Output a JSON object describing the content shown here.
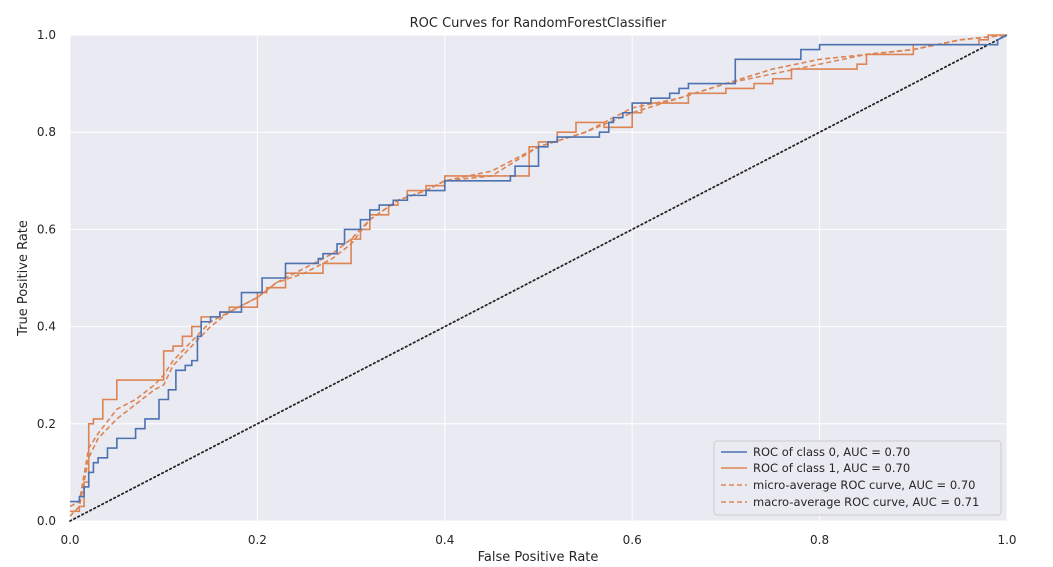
{
  "chart_data": {
    "type": "line",
    "title": "ROC Curves for RandomForestClassifier",
    "xlabel": "False Positive Rate",
    "ylabel": "True Positive Rate",
    "xlim": [
      0,
      1
    ],
    "ylim": [
      0,
      1
    ],
    "x_ticks": [
      "0.0",
      "0.2",
      "0.4",
      "0.6",
      "0.8",
      "1.0"
    ],
    "y_ticks": [
      "0.0",
      "0.2",
      "0.4",
      "0.6",
      "0.8",
      "1.0"
    ],
    "grid": true,
    "legend_position": "bottom-right",
    "colors": {
      "class0": "#4c72b0",
      "class1": "#dd8452",
      "diagonal": "#262626",
      "background": "#eaeaf2"
    },
    "series": [
      {
        "name": "ROC of class 0, AUC = 0.70",
        "style": "solid",
        "points": [
          [
            0,
            0.04
          ],
          [
            0.01,
            0.04
          ],
          [
            0.01,
            0.05
          ],
          [
            0.015,
            0.05
          ],
          [
            0.015,
            0.07
          ],
          [
            0.02,
            0.07
          ],
          [
            0.02,
            0.1
          ],
          [
            0.025,
            0.1
          ],
          [
            0.025,
            0.12
          ],
          [
            0.03,
            0.12
          ],
          [
            0.03,
            0.13
          ],
          [
            0.04,
            0.13
          ],
          [
            0.04,
            0.15
          ],
          [
            0.05,
            0.15
          ],
          [
            0.05,
            0.17
          ],
          [
            0.07,
            0.17
          ],
          [
            0.07,
            0.19
          ],
          [
            0.08,
            0.19
          ],
          [
            0.08,
            0.21
          ],
          [
            0.095,
            0.21
          ],
          [
            0.095,
            0.25
          ],
          [
            0.105,
            0.25
          ],
          [
            0.105,
            0.27
          ],
          [
            0.113,
            0.27
          ],
          [
            0.113,
            0.31
          ],
          [
            0.123,
            0.31
          ],
          [
            0.123,
            0.32
          ],
          [
            0.13,
            0.32
          ],
          [
            0.13,
            0.33
          ],
          [
            0.136,
            0.33
          ],
          [
            0.136,
            0.38
          ],
          [
            0.14,
            0.38
          ],
          [
            0.14,
            0.41
          ],
          [
            0.15,
            0.41
          ],
          [
            0.15,
            0.42
          ],
          [
            0.16,
            0.42
          ],
          [
            0.16,
            0.43
          ],
          [
            0.183,
            0.43
          ],
          [
            0.183,
            0.47
          ],
          [
            0.205,
            0.47
          ],
          [
            0.205,
            0.5
          ],
          [
            0.23,
            0.5
          ],
          [
            0.23,
            0.53
          ],
          [
            0.265,
            0.53
          ],
          [
            0.265,
            0.54
          ],
          [
            0.27,
            0.54
          ],
          [
            0.27,
            0.55
          ],
          [
            0.285,
            0.55
          ],
          [
            0.285,
            0.57
          ],
          [
            0.293,
            0.57
          ],
          [
            0.293,
            0.6
          ],
          [
            0.31,
            0.6
          ],
          [
            0.31,
            0.62
          ],
          [
            0.32,
            0.62
          ],
          [
            0.32,
            0.64
          ],
          [
            0.33,
            0.64
          ],
          [
            0.33,
            0.65
          ],
          [
            0.345,
            0.65
          ],
          [
            0.345,
            0.66
          ],
          [
            0.36,
            0.66
          ],
          [
            0.36,
            0.67
          ],
          [
            0.38,
            0.67
          ],
          [
            0.38,
            0.68
          ],
          [
            0.4,
            0.68
          ],
          [
            0.4,
            0.7
          ],
          [
            0.47,
            0.7
          ],
          [
            0.47,
            0.71
          ],
          [
            0.475,
            0.71
          ],
          [
            0.475,
            0.73
          ],
          [
            0.5,
            0.73
          ],
          [
            0.5,
            0.77
          ],
          [
            0.51,
            0.77
          ],
          [
            0.51,
            0.78
          ],
          [
            0.52,
            0.78
          ],
          [
            0.52,
            0.79
          ],
          [
            0.565,
            0.79
          ],
          [
            0.565,
            0.8
          ],
          [
            0.575,
            0.8
          ],
          [
            0.575,
            0.82
          ],
          [
            0.58,
            0.82
          ],
          [
            0.58,
            0.83
          ],
          [
            0.59,
            0.83
          ],
          [
            0.59,
            0.84
          ],
          [
            0.6,
            0.84
          ],
          [
            0.6,
            0.86
          ],
          [
            0.62,
            0.86
          ],
          [
            0.62,
            0.87
          ],
          [
            0.64,
            0.87
          ],
          [
            0.64,
            0.88
          ],
          [
            0.65,
            0.88
          ],
          [
            0.65,
            0.89
          ],
          [
            0.66,
            0.89
          ],
          [
            0.66,
            0.9
          ],
          [
            0.71,
            0.9
          ],
          [
            0.71,
            0.95
          ],
          [
            0.78,
            0.95
          ],
          [
            0.78,
            0.97
          ],
          [
            0.8,
            0.97
          ],
          [
            0.8,
            0.98
          ],
          [
            0.99,
            0.98
          ],
          [
            0.99,
            0.99
          ],
          [
            1,
            1
          ]
        ]
      },
      {
        "name": "ROC of class 1, AUC = 0.70",
        "style": "solid",
        "points": [
          [
            0,
            0.02
          ],
          [
            0.01,
            0.02
          ],
          [
            0.01,
            0.03
          ],
          [
            0.015,
            0.03
          ],
          [
            0.015,
            0.08
          ],
          [
            0.02,
            0.08
          ],
          [
            0.02,
            0.2
          ],
          [
            0.025,
            0.2
          ],
          [
            0.025,
            0.21
          ],
          [
            0.035,
            0.21
          ],
          [
            0.035,
            0.25
          ],
          [
            0.05,
            0.25
          ],
          [
            0.05,
            0.29
          ],
          [
            0.1,
            0.29
          ],
          [
            0.1,
            0.35
          ],
          [
            0.11,
            0.35
          ],
          [
            0.11,
            0.36
          ],
          [
            0.12,
            0.36
          ],
          [
            0.12,
            0.38
          ],
          [
            0.13,
            0.38
          ],
          [
            0.13,
            0.4
          ],
          [
            0.14,
            0.4
          ],
          [
            0.14,
            0.42
          ],
          [
            0.16,
            0.42
          ],
          [
            0.16,
            0.43
          ],
          [
            0.17,
            0.43
          ],
          [
            0.17,
            0.44
          ],
          [
            0.2,
            0.44
          ],
          [
            0.2,
            0.47
          ],
          [
            0.21,
            0.47
          ],
          [
            0.21,
            0.48
          ],
          [
            0.23,
            0.48
          ],
          [
            0.23,
            0.51
          ],
          [
            0.27,
            0.51
          ],
          [
            0.27,
            0.53
          ],
          [
            0.3,
            0.53
          ],
          [
            0.3,
            0.58
          ],
          [
            0.31,
            0.58
          ],
          [
            0.31,
            0.6
          ],
          [
            0.32,
            0.6
          ],
          [
            0.32,
            0.63
          ],
          [
            0.34,
            0.63
          ],
          [
            0.34,
            0.65
          ],
          [
            0.35,
            0.65
          ],
          [
            0.35,
            0.66
          ],
          [
            0.36,
            0.66
          ],
          [
            0.36,
            0.68
          ],
          [
            0.38,
            0.68
          ],
          [
            0.38,
            0.69
          ],
          [
            0.4,
            0.69
          ],
          [
            0.4,
            0.71
          ],
          [
            0.49,
            0.71
          ],
          [
            0.49,
            0.77
          ],
          [
            0.5,
            0.77
          ],
          [
            0.5,
            0.78
          ],
          [
            0.52,
            0.78
          ],
          [
            0.52,
            0.8
          ],
          [
            0.54,
            0.8
          ],
          [
            0.54,
            0.82
          ],
          [
            0.57,
            0.82
          ],
          [
            0.57,
            0.81
          ],
          [
            0.6,
            0.81
          ],
          [
            0.6,
            0.84
          ],
          [
            0.61,
            0.84
          ],
          [
            0.61,
            0.86
          ],
          [
            0.66,
            0.86
          ],
          [
            0.66,
            0.88
          ],
          [
            0.7,
            0.88
          ],
          [
            0.7,
            0.89
          ],
          [
            0.73,
            0.89
          ],
          [
            0.73,
            0.9
          ],
          [
            0.75,
            0.9
          ],
          [
            0.75,
            0.91
          ],
          [
            0.77,
            0.91
          ],
          [
            0.77,
            0.93
          ],
          [
            0.84,
            0.93
          ],
          [
            0.84,
            0.94
          ],
          [
            0.85,
            0.94
          ],
          [
            0.85,
            0.96
          ],
          [
            0.9,
            0.96
          ],
          [
            0.9,
            0.98
          ],
          [
            0.97,
            0.98
          ],
          [
            0.97,
            0.99
          ],
          [
            0.98,
            0.99
          ],
          [
            0.98,
            1
          ],
          [
            1,
            1
          ]
        ]
      },
      {
        "name": "micro-average ROC curve, AUC = 0.70",
        "style": "dashed",
        "points": [
          [
            0,
            0.01
          ],
          [
            0.01,
            0.03
          ],
          [
            0.02,
            0.13
          ],
          [
            0.03,
            0.17
          ],
          [
            0.05,
            0.21
          ],
          [
            0.07,
            0.24
          ],
          [
            0.09,
            0.27
          ],
          [
            0.1,
            0.28
          ],
          [
            0.11,
            0.32
          ],
          [
            0.13,
            0.36
          ],
          [
            0.15,
            0.4
          ],
          [
            0.17,
            0.43
          ],
          [
            0.2,
            0.46
          ],
          [
            0.22,
            0.49
          ],
          [
            0.25,
            0.51
          ],
          [
            0.28,
            0.54
          ],
          [
            0.3,
            0.57
          ],
          [
            0.32,
            0.62
          ],
          [
            0.35,
            0.66
          ],
          [
            0.38,
            0.68
          ],
          [
            0.4,
            0.7
          ],
          [
            0.45,
            0.71
          ],
          [
            0.5,
            0.77
          ],
          [
            0.55,
            0.8
          ],
          [
            0.6,
            0.84
          ],
          [
            0.65,
            0.87
          ],
          [
            0.7,
            0.9
          ],
          [
            0.75,
            0.92
          ],
          [
            0.8,
            0.94
          ],
          [
            0.85,
            0.96
          ],
          [
            0.9,
            0.97
          ],
          [
            0.95,
            0.99
          ],
          [
            1,
            1
          ]
        ]
      },
      {
        "name": "macro-average ROC curve, AUC = 0.71",
        "style": "dashed",
        "points": [
          [
            0,
            0.03
          ],
          [
            0.01,
            0.04
          ],
          [
            0.02,
            0.15
          ],
          [
            0.03,
            0.18
          ],
          [
            0.05,
            0.23
          ],
          [
            0.07,
            0.25
          ],
          [
            0.09,
            0.28
          ],
          [
            0.1,
            0.3
          ],
          [
            0.11,
            0.33
          ],
          [
            0.13,
            0.37
          ],
          [
            0.15,
            0.41
          ],
          [
            0.17,
            0.43
          ],
          [
            0.2,
            0.46
          ],
          [
            0.22,
            0.49
          ],
          [
            0.25,
            0.52
          ],
          [
            0.28,
            0.55
          ],
          [
            0.3,
            0.58
          ],
          [
            0.32,
            0.62
          ],
          [
            0.35,
            0.66
          ],
          [
            0.38,
            0.68
          ],
          [
            0.4,
            0.7
          ],
          [
            0.45,
            0.72
          ],
          [
            0.5,
            0.77
          ],
          [
            0.55,
            0.8
          ],
          [
            0.6,
            0.85
          ],
          [
            0.65,
            0.87
          ],
          [
            0.7,
            0.9
          ],
          [
            0.75,
            0.93
          ],
          [
            0.8,
            0.95
          ],
          [
            0.85,
            0.96
          ],
          [
            0.9,
            0.97
          ],
          [
            0.95,
            0.99
          ],
          [
            1,
            1
          ]
        ]
      },
      {
        "name": "",
        "style": "dotted",
        "points": [
          [
            0,
            0
          ],
          [
            1,
            1
          ]
        ]
      }
    ]
  }
}
